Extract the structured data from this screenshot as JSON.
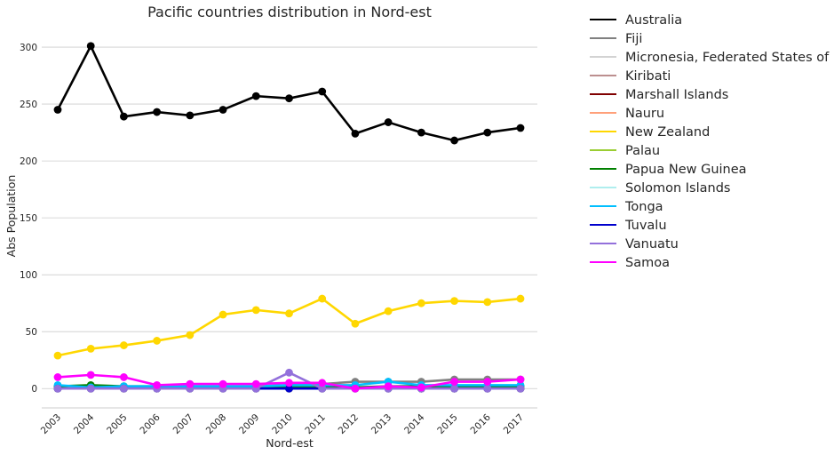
{
  "chart_data": {
    "type": "line",
    "title": "Pacific countries distribution in Nord-est",
    "xlabel": "Nord-est",
    "ylabel": "Abs Population",
    "x": [
      "2003",
      "2004",
      "2005",
      "2006",
      "2007",
      "2008",
      "2009",
      "2010",
      "2011",
      "2012",
      "2013",
      "2014",
      "2015",
      "2016",
      "2017"
    ],
    "ylim": [
      -17,
      318
    ],
    "yticks": [
      0,
      50,
      100,
      150,
      200,
      250,
      300
    ],
    "grid": "horizontal",
    "legend_placement": "outside-right",
    "series": [
      {
        "name": "Australia",
        "color": "#000000",
        "values": [
          245,
          301,
          239,
          243,
          240,
          245,
          257,
          255,
          261,
          224,
          234,
          225,
          218,
          225,
          229
        ]
      },
      {
        "name": "Fiji",
        "color": "#808080",
        "values": [
          1,
          1,
          1,
          1,
          1,
          1,
          2,
          3,
          4,
          6,
          6,
          6,
          8,
          8,
          8
        ]
      },
      {
        "name": "Micronesia, Federated States of",
        "color": "#d3d3d3",
        "values": [
          0,
          0,
          0,
          0,
          0,
          0,
          0,
          0,
          0,
          0,
          0,
          0,
          0,
          0,
          0
        ]
      },
      {
        "name": "Kiribati",
        "color": "#bc8f8f",
        "values": [
          0,
          0,
          0,
          0,
          0,
          0,
          0,
          0,
          0,
          0,
          0,
          0,
          0,
          0,
          0
        ]
      },
      {
        "name": "Marshall Islands",
        "color": "#800000",
        "values": [
          0,
          0,
          0,
          0,
          0,
          0,
          0,
          0,
          0,
          0,
          0,
          0,
          0,
          0,
          0
        ]
      },
      {
        "name": "Nauru",
        "color": "#ffa07a",
        "values": [
          0,
          0,
          0,
          0,
          0,
          0,
          0,
          0,
          0,
          0,
          0,
          0,
          0,
          0,
          0
        ]
      },
      {
        "name": "New Zealand",
        "color": "#ffd700",
        "values": [
          29,
          35,
          38,
          42,
          47,
          65,
          69,
          66,
          79,
          57,
          68,
          75,
          77,
          76,
          79
        ]
      },
      {
        "name": "Palau",
        "color": "#9acd32",
        "values": [
          0,
          0,
          0,
          0,
          0,
          0,
          0,
          0,
          0,
          0,
          0,
          0,
          0,
          0,
          0
        ]
      },
      {
        "name": "Papua New Guinea",
        "color": "#008000",
        "values": [
          2,
          3,
          2,
          2,
          2,
          2,
          2,
          2,
          2,
          1,
          2,
          2,
          2,
          2,
          2
        ]
      },
      {
        "name": "Solomon Islands",
        "color": "#afeeee",
        "values": [
          0,
          0,
          0,
          0,
          0,
          0,
          0,
          0,
          0,
          0,
          0,
          0,
          0,
          0,
          0
        ]
      },
      {
        "name": "Tonga",
        "color": "#00bfff",
        "values": [
          3,
          1,
          2,
          2,
          2,
          2,
          2,
          3,
          3,
          3,
          6,
          3,
          3,
          3,
          3
        ]
      },
      {
        "name": "Tuvalu",
        "color": "#0000cd",
        "values": [
          0,
          0,
          0,
          0,
          0,
          0,
          0,
          0,
          0,
          0,
          0,
          0,
          0,
          0,
          0
        ]
      },
      {
        "name": "Vanuatu",
        "color": "#9370db",
        "values": [
          0,
          0,
          0,
          0,
          0,
          0,
          0,
          14,
          0,
          0,
          0,
          0,
          0,
          0,
          0
        ]
      },
      {
        "name": "Samoa",
        "color": "#ff00ff",
        "values": [
          10,
          12,
          10,
          3,
          4,
          4,
          4,
          5,
          5,
          0,
          2,
          1,
          6,
          6,
          8
        ]
      }
    ]
  }
}
